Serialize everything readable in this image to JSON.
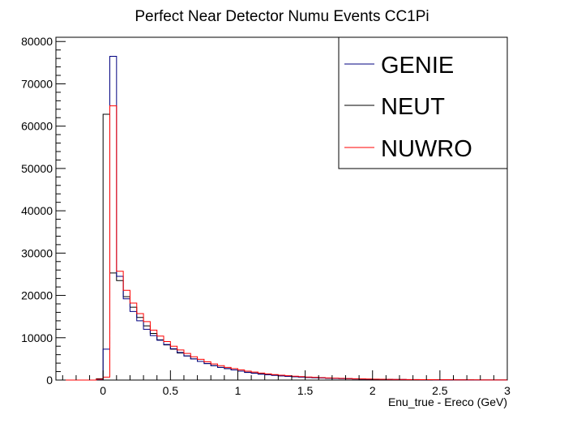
{
  "chart_data": {
    "type": "line",
    "title": "Perfect Near Detector Numu Events CC1Pi",
    "xlabel": "Enu_true - Ereco (GeV)",
    "ylabel": "",
    "xlim": [
      -0.35,
      3.0
    ],
    "ylim": [
      0,
      81000
    ],
    "bin_width": 0.05,
    "x_ticks": [
      {
        "v": 0,
        "label": "0"
      },
      {
        "v": 0.5,
        "label": "0.5"
      },
      {
        "v": 1,
        "label": "1"
      },
      {
        "v": 1.5,
        "label": "1.5"
      },
      {
        "v": 2,
        "label": "2"
      },
      {
        "v": 2.5,
        "label": "2.5"
      },
      {
        "v": 3,
        "label": "3"
      }
    ],
    "y_ticks": [
      {
        "v": 0,
        "label": "0"
      },
      {
        "v": 10000,
        "label": "10000"
      },
      {
        "v": 20000,
        "label": "20000"
      },
      {
        "v": 30000,
        "label": "30000"
      },
      {
        "v": 40000,
        "label": "40000"
      },
      {
        "v": 50000,
        "label": "50000"
      },
      {
        "v": 60000,
        "label": "60000"
      },
      {
        "v": 70000,
        "label": "70000"
      },
      {
        "v": 80000,
        "label": "80000"
      }
    ],
    "grid": false,
    "legend_position": "top-right",
    "x_bin_edges": [
      -0.35,
      -0.3,
      -0.25,
      -0.2,
      -0.15,
      -0.1,
      -0.05,
      0.0,
      0.05,
      0.1,
      0.15,
      0.2,
      0.25,
      0.3,
      0.35,
      0.4,
      0.45,
      0.5,
      0.55,
      0.6,
      0.65,
      0.7,
      0.75,
      0.8,
      0.85,
      0.9,
      0.95,
      1.0,
      1.05,
      1.1,
      1.15,
      1.2,
      1.25,
      1.3,
      1.35,
      1.4,
      1.45,
      1.5,
      1.55,
      1.6,
      1.65,
      1.7,
      1.75,
      1.8,
      1.85,
      1.9,
      1.95,
      2.0,
      2.05,
      2.1,
      2.15,
      2.2,
      2.25,
      2.3,
      2.35,
      2.4,
      2.45,
      2.5,
      2.55,
      2.6,
      2.65,
      2.7,
      2.75,
      2.8,
      2.85,
      2.9,
      2.95,
      3.0
    ],
    "series": [
      {
        "name": "GENIE",
        "color": "#000080",
        "values": [
          0,
          0,
          0,
          0,
          0,
          0,
          100,
          7300,
          76500,
          24500,
          19200,
          16200,
          14000,
          12000,
          10500,
          9400,
          8400,
          7400,
          6500,
          5700,
          5000,
          4400,
          3900,
          3400,
          3000,
          2700,
          2400,
          2100,
          1800,
          1600,
          1400,
          1250,
          1100,
          980,
          870,
          780,
          690,
          610,
          540,
          480,
          420,
          380,
          340,
          300,
          260,
          230,
          200,
          180,
          160,
          140,
          120,
          110,
          100,
          90,
          80,
          70,
          60,
          55,
          50,
          45,
          40,
          35,
          30,
          28,
          25,
          22,
          20
        ]
      },
      {
        "name": "NEUT",
        "color": "#000000",
        "values": [
          0,
          0,
          0,
          0,
          0,
          0,
          300,
          62800,
          25300,
          23500,
          19700,
          17200,
          14800,
          12800,
          11000,
          9500,
          8300,
          7300,
          6400,
          5700,
          5000,
          4400,
          3900,
          3400,
          3000,
          2700,
          2400,
          2100,
          1850,
          1650,
          1450,
          1300,
          1150,
          1000,
          900,
          800,
          710,
          630,
          560,
          500,
          440,
          390,
          350,
          310,
          270,
          240,
          210,
          190,
          170,
          150,
          130,
          120,
          105,
          95,
          85,
          75,
          65,
          58,
          52,
          46,
          41,
          36,
          32,
          28,
          25,
          22,
          20
        ]
      },
      {
        "name": "NUWRO",
        "color": "#ff0000",
        "values": [
          0,
          0,
          0,
          0,
          0,
          0,
          200,
          700,
          64800,
          25700,
          21200,
          18200,
          15700,
          13800,
          11800,
          10400,
          9100,
          8000,
          7100,
          6300,
          5500,
          4900,
          4300,
          3800,
          3400,
          3000,
          2700,
          2400,
          2100,
          1900,
          1650,
          1450,
          1300,
          1150,
          1030,
          920,
          820,
          730,
          650,
          580,
          510,
          450,
          400,
          360,
          320,
          280,
          250,
          220,
          195,
          175,
          155,
          140,
          125,
          110,
          100,
          90,
          80,
          70,
          62,
          55,
          48,
          42,
          38,
          34,
          30,
          27,
          24
        ]
      }
    ]
  }
}
